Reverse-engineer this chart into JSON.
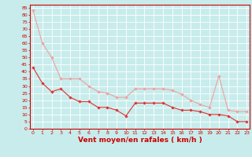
{
  "x": [
    0,
    1,
    2,
    3,
    4,
    5,
    6,
    7,
    8,
    9,
    10,
    11,
    12,
    13,
    14,
    15,
    16,
    17,
    18,
    19,
    20,
    21,
    22,
    23
  ],
  "y_mean": [
    43,
    32,
    26,
    28,
    22,
    19,
    19,
    15,
    15,
    13,
    9,
    18,
    18,
    18,
    18,
    15,
    13,
    13,
    12,
    10,
    10,
    9,
    5,
    5
  ],
  "y_gust": [
    83,
    60,
    50,
    35,
    35,
    35,
    30,
    26,
    25,
    22,
    22,
    28,
    28,
    28,
    28,
    27,
    24,
    20,
    17,
    15,
    37,
    13,
    12,
    12
  ],
  "line_color_mean": "#e03030",
  "line_color_gust": "#f0a0a0",
  "bg_color": "#c8ecec",
  "grid_color": "#ffffff",
  "axis_color": "#cc0000",
  "xlabel": "Vent moyen/en rafales ( km/h )",
  "ylim": [
    0,
    87
  ],
  "xlim": [
    -0.3,
    23.3
  ],
  "yticks": [
    0,
    5,
    10,
    15,
    20,
    25,
    30,
    35,
    40,
    45,
    50,
    55,
    60,
    65,
    70,
    75,
    80,
    85
  ],
  "xticks": [
    0,
    1,
    2,
    3,
    4,
    5,
    6,
    7,
    8,
    9,
    10,
    11,
    12,
    13,
    14,
    15,
    16,
    17,
    18,
    19,
    20,
    21,
    22,
    23
  ],
  "tick_fontsize": 4.5,
  "xlabel_fontsize": 6.5,
  "marker_size": 1.8,
  "linewidth": 0.8
}
